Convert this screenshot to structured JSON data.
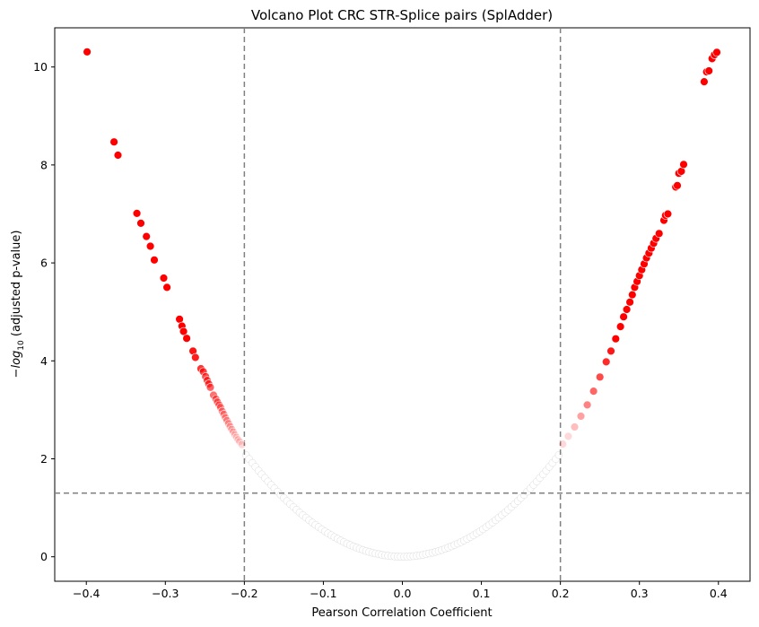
{
  "chart_data": {
    "type": "scatter",
    "title": "Volcano Plot CRC STR-Splice pairs (SplAdder)",
    "xlabel": "Pearson Correlation Coefficient",
    "ylabel_prefix": "−",
    "ylabel_log": "log",
    "ylabel_sub": "10",
    "ylabel_suffix": " (adjusted p-value)",
    "xlim": [
      -0.44,
      0.44
    ],
    "ylim": [
      -0.5,
      10.8
    ],
    "xticks": [
      -0.4,
      -0.3,
      -0.2,
      -0.1,
      0.0,
      0.1,
      0.2,
      0.3,
      0.4
    ],
    "xtick_labels": [
      "−0.4",
      "−0.3",
      "−0.2",
      "−0.1",
      "0.0",
      "0.1",
      "0.2",
      "0.3",
      "0.4"
    ],
    "yticks": [
      0,
      2,
      4,
      6,
      8,
      10
    ],
    "ytick_labels": [
      "0",
      "2",
      "4",
      "6",
      "8",
      "10"
    ],
    "grid": false,
    "thresholds": {
      "x": [
        -0.2,
        0.2
      ],
      "y": [
        1.3
      ]
    },
    "colors": {
      "significant": "#ff0000",
      "nonsignificant": "#d9d9d9",
      "threshold_line": "#808080"
    },
    "points": [
      [
        -0.399,
        10.31
      ],
      [
        -0.365,
        8.47
      ],
      [
        -0.36,
        8.2
      ],
      [
        -0.336,
        7.01
      ],
      [
        -0.331,
        6.81
      ],
      [
        -0.324,
        6.54
      ],
      [
        -0.319,
        6.34
      ],
      [
        -0.314,
        6.06
      ],
      [
        -0.302,
        5.69
      ],
      [
        -0.298,
        5.5
      ],
      [
        -0.282,
        4.85
      ],
      [
        -0.279,
        4.71
      ],
      [
        -0.277,
        4.6
      ],
      [
        -0.273,
        4.46
      ],
      [
        -0.265,
        4.2
      ],
      [
        -0.262,
        4.07
      ],
      [
        -0.255,
        3.84
      ],
      [
        -0.252,
        3.78
      ],
      [
        -0.249,
        3.68
      ],
      [
        -0.247,
        3.6
      ],
      [
        -0.245,
        3.53
      ],
      [
        -0.243,
        3.46
      ],
      [
        -0.239,
        3.3
      ],
      [
        -0.236,
        3.22
      ],
      [
        -0.234,
        3.16
      ],
      [
        -0.232,
        3.1
      ],
      [
        -0.23,
        3.05
      ],
      [
        -0.228,
        2.97
      ],
      [
        -0.226,
        2.91
      ],
      [
        -0.224,
        2.84
      ],
      [
        -0.222,
        2.78
      ],
      [
        -0.22,
        2.72
      ],
      [
        -0.218,
        2.66
      ],
      [
        -0.216,
        2.6
      ],
      [
        -0.214,
        2.55
      ],
      [
        -0.212,
        2.49
      ],
      [
        -0.21,
        2.44
      ],
      [
        -0.208,
        2.39
      ],
      [
        -0.206,
        2.35
      ],
      [
        -0.203,
        2.29
      ],
      [
        0.203,
        2.3
      ],
      [
        0.21,
        2.46
      ],
      [
        0.218,
        2.65
      ],
      [
        0.226,
        2.87
      ],
      [
        0.234,
        3.1
      ],
      [
        0.242,
        3.38
      ],
      [
        0.25,
        3.67
      ],
      [
        0.258,
        3.98
      ],
      [
        0.264,
        4.2
      ],
      [
        0.27,
        4.45
      ],
      [
        0.276,
        4.7
      ],
      [
        0.28,
        4.9
      ],
      [
        0.284,
        5.05
      ],
      [
        0.288,
        5.2
      ],
      [
        0.291,
        5.35
      ],
      [
        0.294,
        5.5
      ],
      [
        0.297,
        5.62
      ],
      [
        0.3,
        5.74
      ],
      [
        0.303,
        5.86
      ],
      [
        0.306,
        5.98
      ],
      [
        0.309,
        6.1
      ],
      [
        0.312,
        6.2
      ],
      [
        0.315,
        6.3
      ],
      [
        0.318,
        6.4
      ],
      [
        0.321,
        6.5
      ],
      [
        0.325,
        6.6
      ],
      [
        0.331,
        6.87
      ],
      [
        0.333,
        6.97
      ],
      [
        0.336,
        7.0
      ],
      [
        0.346,
        7.55
      ],
      [
        0.348,
        7.58
      ],
      [
        0.35,
        7.83
      ],
      [
        0.353,
        7.87
      ],
      [
        0.356,
        8.01
      ],
      [
        0.382,
        9.7
      ],
      [
        0.385,
        9.9
      ],
      [
        0.388,
        9.92
      ],
      [
        0.392,
        10.17
      ],
      [
        0.395,
        10.25
      ],
      [
        0.398,
        10.3
      ]
    ]
  }
}
